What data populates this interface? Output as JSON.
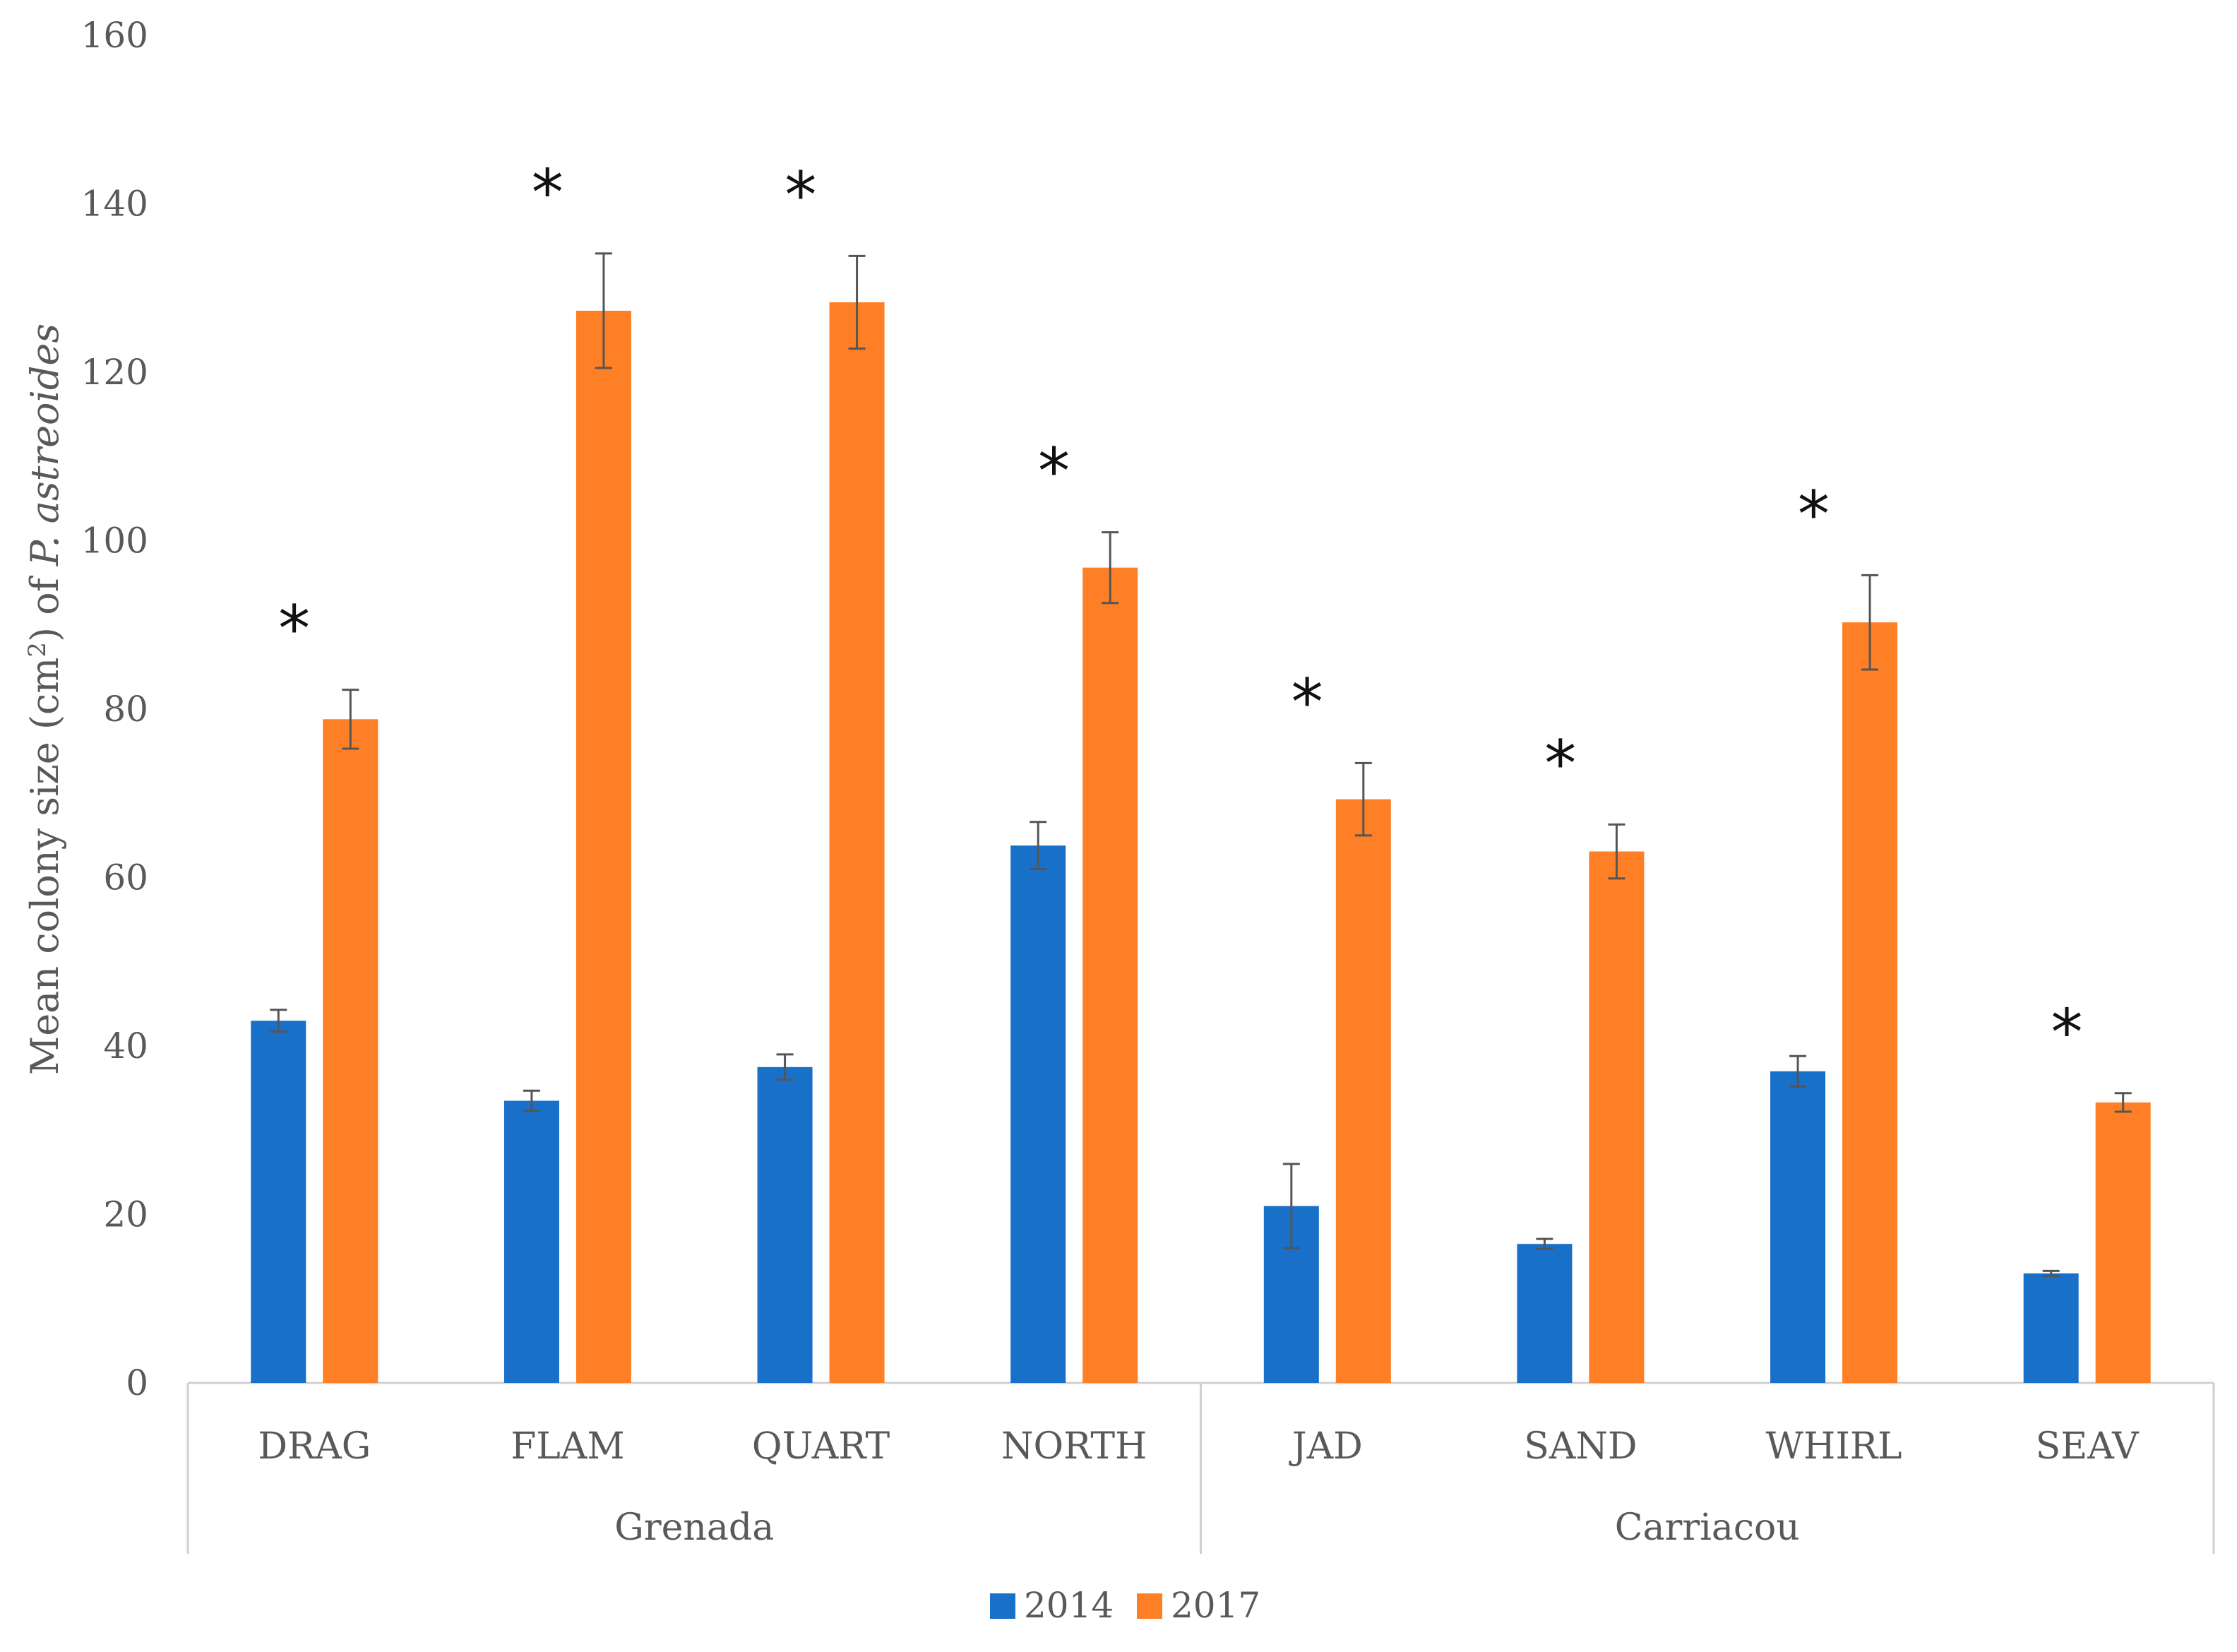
{
  "chart_data": {
    "type": "bar",
    "title": "",
    "xlabel": "",
    "ylabel": {
      "prefix": "Mean colony size (cm",
      "superscript": "2",
      "middle": ") of ",
      "italic": "P. astreoides"
    },
    "ylim": [
      0,
      160
    ],
    "yticks": [
      "0",
      "20",
      "40",
      "60",
      "80",
      "100",
      "120",
      "140",
      "160"
    ],
    "categories": [
      "DRAG",
      "FLAM",
      "QUART",
      "NORTH",
      "JAD",
      "SAND",
      "WHIRL",
      "SEAV"
    ],
    "groups": [
      {
        "name": "Grenada",
        "categories": [
          "DRAG",
          "FLAM",
          "QUART",
          "NORTH"
        ]
      },
      {
        "name": "Carriacou",
        "categories": [
          "JAD",
          "SAND",
          "WHIRL",
          "SEAV"
        ]
      }
    ],
    "series": [
      {
        "name": "2014",
        "color": "#1870C8",
        "values": [
          43,
          33.5,
          37.5,
          63.8,
          21,
          16.5,
          37,
          13
        ],
        "errors": [
          1.3,
          1.2,
          1.5,
          2.8,
          5,
          0.6,
          1.8,
          0.3
        ]
      },
      {
        "name": "2017",
        "color": "#FE7F26",
        "values": [
          78.8,
          127.3,
          128.3,
          96.8,
          69.3,
          63.1,
          90.3,
          33.3
        ],
        "errors": [
          3.5,
          6.8,
          5.5,
          4.2,
          4.3,
          3.2,
          5.6,
          1.1
        ]
      }
    ],
    "significance_marker": "*",
    "significant": [
      true,
      true,
      true,
      true,
      true,
      true,
      true,
      true
    ],
    "legend": {
      "position": "bottom",
      "entries": [
        "2014",
        "2017"
      ]
    }
  }
}
